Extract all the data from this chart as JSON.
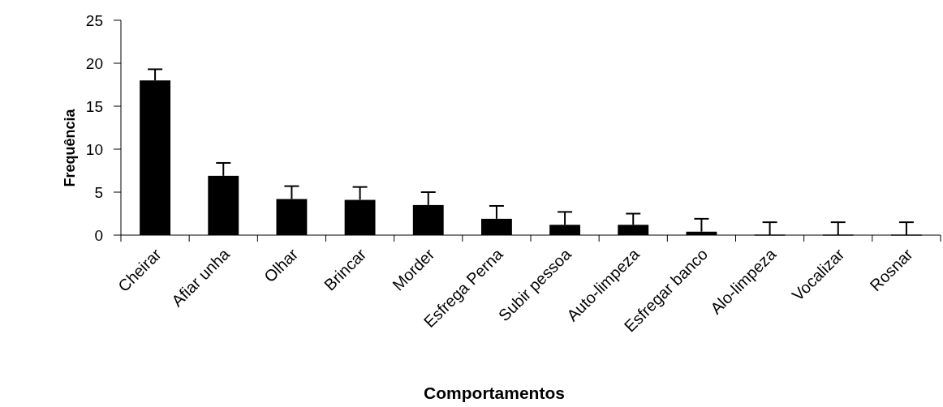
{
  "chart_data": {
    "type": "bar",
    "xlabel": "Comportamentos",
    "ylabel": "Frequência",
    "categories": [
      "Cheirar",
      "Afiar unha",
      "Olhar",
      "Brincar",
      "Morder",
      "Esfrega Perna",
      "Subir pessoa",
      "Auto-limpeza",
      "Esfregar banco",
      "Alo-limpeza",
      "Vocalizar",
      "Rosnar"
    ],
    "values": [
      18,
      6.9,
      4.2,
      4.1,
      3.5,
      1.9,
      1.2,
      1.2,
      0.4,
      0,
      0,
      0
    ],
    "errors": [
      [
        18,
        19.3
      ],
      [
        6.9,
        8.4
      ],
      [
        4.2,
        5.7
      ],
      [
        4.1,
        5.6
      ],
      [
        3.5,
        5
      ],
      [
        1.9,
        3.4
      ],
      [
        1.2,
        2.7
      ],
      [
        1.2,
        2.5
      ],
      [
        0.4,
        1.9
      ],
      [
        0,
        1.5
      ],
      [
        0,
        1.5
      ],
      [
        0,
        1.5
      ]
    ],
    "color": "#000000",
    "ylim": [
      0,
      25
    ],
    "yticks": [
      0,
      5,
      10,
      15,
      20,
      25
    ],
    "grid": false
  }
}
